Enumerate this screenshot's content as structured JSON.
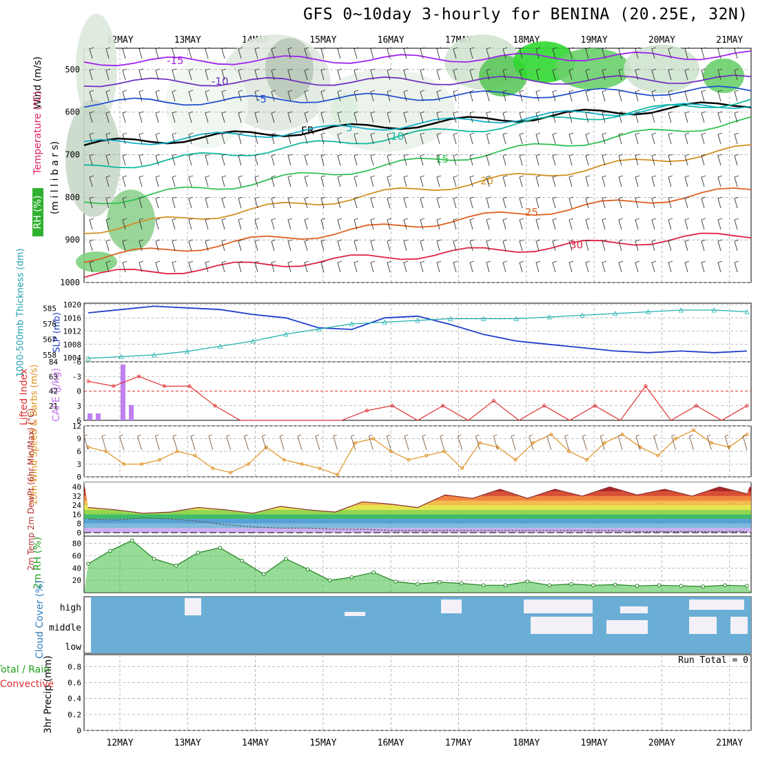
{
  "title": "GFS 0~10day 3-hourly for BENINA (20.25E, 32N)",
  "run_total": "Run Total = 0",
  "colors": {
    "temp_isotherm": [
      "#a020f0",
      "#7030c0",
      "#2050d0",
      "#1a8fd8",
      "#14b0c8",
      "#10b8a0",
      "#30c050",
      "#d09020",
      "#e06020",
      "#e02040"
    ],
    "slp": "#1e3ccc",
    "thickness": "#20b0b0",
    "lifted": "#e03030",
    "cape": "#c080f0",
    "wind_speed": "#e09020",
    "rh2m": "#20a020",
    "cloud": "#6aaed6"
  },
  "chart_data": [
    {
      "type": "heatmap",
      "panel": "upper-air",
      "ylabel": "(m i l l i b a r s)",
      "side_labels": [
        "Wind (m/s)",
        "Temperature (°C)",
        "RH (%)"
      ],
      "x": [
        "12MAY",
        "13MAY",
        "14MAY",
        "15MAY",
        "16MAY",
        "17MAY",
        "18MAY",
        "19MAY",
        "20MAY",
        "21MAY"
      ],
      "yticks": [
        500,
        600,
        700,
        800,
        900,
        1000
      ],
      "ylim": [
        450,
        1000
      ],
      "isotherm_labels": [
        "-15",
        "-10",
        "-5",
        "FR",
        "5",
        "10",
        "15",
        "20",
        "25",
        "30"
      ]
    },
    {
      "type": "line",
      "panel": "slp-thickness",
      "left_label": "1000-500mb Thickness (dm)",
      "right_label": "SLP (mb)",
      "left_ticks": [
        558,
        567,
        576,
        585
      ],
      "right_ticks": [
        1004,
        1008,
        1012,
        1016,
        1020
      ],
      "series": [
        {
          "name": "SLP (mb)",
          "values": [
            1017.5,
            1018.5,
            1019.5,
            1019,
            1018.5,
            1017,
            1016,
            1013,
            1012.5,
            1016,
            1016.5,
            1014,
            1011,
            1009,
            1008,
            1007,
            1006,
            1005.5,
            1006,
            1005.5,
            1006
          ]
        },
        {
          "name": "1000-500mb Thickness (dm)",
          "values": [
            556,
            557,
            558,
            560,
            563,
            566,
            570,
            573,
            576,
            577,
            578,
            579,
            579,
            579,
            580,
            581,
            582,
            583,
            584,
            584,
            583
          ]
        }
      ]
    },
    {
      "type": "bar",
      "panel": "stability",
      "left_label": "Lifted Index",
      "right_label": "CAPE (J/kg)",
      "li_ticks": [
        "-6",
        "-3",
        "0",
        "3",
        "6"
      ],
      "cape_ticks": [
        21,
        42,
        63,
        84
      ],
      "series": [
        {
          "name": "Lifted Index",
          "values": [
            -2,
            -1,
            -3,
            -1,
            -1,
            3,
            6,
            6,
            6,
            6,
            6,
            4,
            3,
            6,
            3,
            6,
            2,
            6,
            3,
            6,
            3,
            6,
            -1,
            6,
            3,
            6,
            3
          ]
        },
        {
          "name": "CAPE (J/kg)",
          "values": [
            10,
            10,
            80,
            22
          ]
        }
      ]
    },
    {
      "type": "line",
      "panel": "wind10m",
      "ylabel": "10m Wind Speed & Barbs (m/s)",
      "yticks": [
        0,
        3,
        6,
        9,
        12
      ],
      "series": [
        {
          "name": "10m Wind Speed",
          "values": [
            7,
            6,
            3,
            3,
            4,
            6,
            5,
            2,
            1,
            3,
            7,
            4,
            3,
            2,
            0.5,
            8,
            9,
            6,
            4,
            5,
            6,
            2,
            8,
            7,
            4,
            8,
            10,
            6,
            4,
            8,
            10,
            7,
            5,
            9,
            11,
            8,
            7,
            10
          ]
        }
      ]
    },
    {
      "type": "area",
      "panel": "temp2m",
      "ylabel": "2m Temp 2m DewPt (6hr Min/Max) (°C)",
      "yticks": [
        0,
        8,
        16,
        24,
        32,
        40
      ],
      "series": [
        {
          "name": "2m Temp",
          "values": [
            22,
            20,
            17,
            18,
            22,
            20,
            17,
            23,
            20,
            18,
            27,
            25,
            22,
            33,
            30,
            38,
            30,
            38,
            32,
            40,
            33,
            38,
            32,
            40,
            34
          ]
        },
        {
          "name": "2m DewPt",
          "values": [
            12,
            11,
            13,
            12,
            10,
            7,
            5,
            4,
            4,
            3,
            3,
            2,
            2,
            2,
            2,
            2,
            2,
            2,
            2,
            2,
            1,
            1,
            1,
            1,
            1
          ]
        }
      ]
    },
    {
      "type": "area",
      "panel": "rh2m",
      "ylabel": "2m RH (%)",
      "yticks": [
        20,
        40,
        60,
        80
      ],
      "series": [
        {
          "name": "2m RH",
          "values": [
            47,
            68,
            85,
            55,
            44,
            65,
            73,
            52,
            30,
            55,
            38,
            20,
            25,
            33,
            18,
            14,
            17,
            15,
            12,
            12,
            18,
            12,
            14,
            12,
            13,
            11,
            12,
            11,
            10,
            12,
            11
          ]
        }
      ]
    },
    {
      "type": "heatmap",
      "panel": "cloud",
      "ylabel": "Cloud Cover (%)",
      "levels": [
        "high",
        "middle",
        "low"
      ]
    },
    {
      "type": "bar",
      "panel": "precip",
      "ylabel": "3hr Precip (mm)",
      "side_labels": [
        "Total / Rain",
        "Convective"
      ],
      "yticks": [
        "0",
        "0.2",
        "0.4",
        "0.6",
        "0.8"
      ],
      "values": []
    }
  ]
}
